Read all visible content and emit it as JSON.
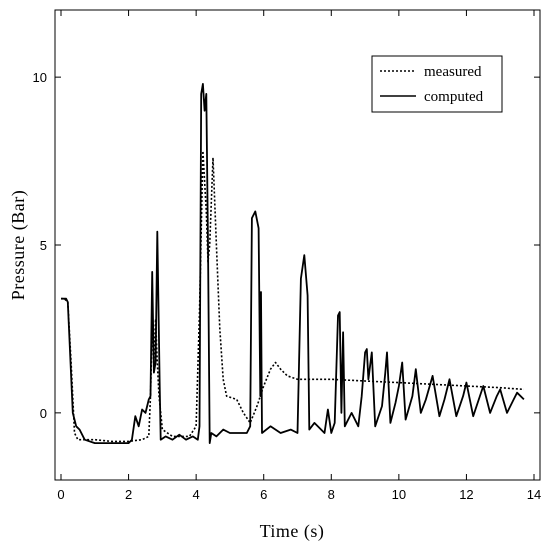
{
  "chart_data": {
    "type": "line",
    "title": "",
    "xlabel": "Time (s)",
    "ylabel": "Pressure (Bar)",
    "xlim": [
      0,
      14
    ],
    "ylim": [
      -2,
      12
    ],
    "xticks": [
      0,
      2,
      4,
      6,
      8,
      10,
      12,
      14
    ],
    "yticks": [
      0,
      5,
      10
    ],
    "grid": false,
    "legend_position": "top-right",
    "series": [
      {
        "name": "measured",
        "style": "dotted",
        "color": "#000000",
        "points": [
          [
            0.0,
            3.4
          ],
          [
            0.1,
            3.4
          ],
          [
            0.2,
            3.3
          ],
          [
            0.3,
            1.5
          ],
          [
            0.4,
            -0.6
          ],
          [
            0.5,
            -0.8
          ],
          [
            0.6,
            -0.8
          ],
          [
            1.0,
            -0.8
          ],
          [
            1.5,
            -0.85
          ],
          [
            2.0,
            -0.85
          ],
          [
            2.4,
            -0.8
          ],
          [
            2.6,
            -0.7
          ],
          [
            2.65,
            0.5
          ],
          [
            2.7,
            2.5
          ],
          [
            2.75,
            1.5
          ],
          [
            2.8,
            2.8
          ],
          [
            2.85,
            1.5
          ],
          [
            2.9,
            0.5
          ],
          [
            3.0,
            -0.5
          ],
          [
            3.3,
            -0.7
          ],
          [
            3.8,
            -0.7
          ],
          [
            4.0,
            -0.4
          ],
          [
            4.1,
            3.0
          ],
          [
            4.2,
            7.8
          ],
          [
            4.3,
            6.0
          ],
          [
            4.35,
            4.5
          ],
          [
            4.4,
            5.0
          ],
          [
            4.5,
            7.6
          ],
          [
            4.6,
            5.0
          ],
          [
            4.7,
            2.5
          ],
          [
            4.8,
            1.0
          ],
          [
            4.9,
            0.5
          ],
          [
            5.2,
            0.4
          ],
          [
            5.4,
            0.0
          ],
          [
            5.6,
            -0.3
          ],
          [
            5.8,
            0.2
          ],
          [
            6.0,
            0.8
          ],
          [
            6.2,
            1.3
          ],
          [
            6.35,
            1.5
          ],
          [
            6.5,
            1.3
          ],
          [
            6.7,
            1.1
          ],
          [
            7.0,
            1.0
          ],
          [
            8.0,
            1.0
          ],
          [
            9.0,
            0.95
          ],
          [
            10.0,
            0.9
          ],
          [
            11.0,
            0.85
          ],
          [
            12.0,
            0.8
          ],
          [
            13.0,
            0.75
          ],
          [
            13.7,
            0.7
          ]
        ]
      },
      {
        "name": "computed",
        "style": "solid",
        "color": "#000000",
        "points": [
          [
            0.0,
            3.4
          ],
          [
            0.15,
            3.4
          ],
          [
            0.2,
            3.3
          ],
          [
            0.35,
            0.0
          ],
          [
            0.45,
            -0.4
          ],
          [
            0.55,
            -0.5
          ],
          [
            0.7,
            -0.8
          ],
          [
            1.0,
            -0.9
          ],
          [
            1.5,
            -0.9
          ],
          [
            2.0,
            -0.9
          ],
          [
            2.1,
            -0.8
          ],
          [
            2.2,
            -0.1
          ],
          [
            2.3,
            -0.4
          ],
          [
            2.4,
            0.1
          ],
          [
            2.5,
            0.0
          ],
          [
            2.6,
            0.4
          ],
          [
            2.65,
            0.5
          ],
          [
            2.7,
            4.2
          ],
          [
            2.75,
            1.2
          ],
          [
            2.8,
            1.5
          ],
          [
            2.85,
            5.4
          ],
          [
            2.88,
            3.5
          ],
          [
            2.92,
            0.8
          ],
          [
            2.95,
            -0.8
          ],
          [
            3.1,
            -0.7
          ],
          [
            3.3,
            -0.8
          ],
          [
            3.5,
            -0.65
          ],
          [
            3.7,
            -0.8
          ],
          [
            3.9,
            -0.7
          ],
          [
            4.05,
            -0.8
          ],
          [
            4.1,
            -0.4
          ],
          [
            4.15,
            9.5
          ],
          [
            4.2,
            9.8
          ],
          [
            4.25,
            9.0
          ],
          [
            4.3,
            9.5
          ],
          [
            4.35,
            5.0
          ],
          [
            4.4,
            -0.9
          ],
          [
            4.45,
            -0.6
          ],
          [
            4.6,
            -0.7
          ],
          [
            4.8,
            -0.5
          ],
          [
            5.0,
            -0.6
          ],
          [
            5.2,
            -0.6
          ],
          [
            5.5,
            -0.6
          ],
          [
            5.6,
            -0.4
          ],
          [
            5.65,
            5.8
          ],
          [
            5.75,
            6.0
          ],
          [
            5.85,
            5.5
          ],
          [
            5.9,
            0.5
          ],
          [
            5.92,
            3.6
          ],
          [
            5.95,
            -0.6
          ],
          [
            6.2,
            -0.4
          ],
          [
            6.5,
            -0.6
          ],
          [
            6.8,
            -0.5
          ],
          [
            7.0,
            -0.6
          ],
          [
            7.1,
            4.0
          ],
          [
            7.2,
            4.7
          ],
          [
            7.3,
            3.5
          ],
          [
            7.35,
            -0.5
          ],
          [
            7.5,
            -0.3
          ],
          [
            7.8,
            -0.6
          ],
          [
            7.9,
            0.1
          ],
          [
            8.0,
            -0.6
          ],
          [
            8.1,
            -0.3
          ],
          [
            8.2,
            2.9
          ],
          [
            8.25,
            3.0
          ],
          [
            8.3,
            0.0
          ],
          [
            8.35,
            2.4
          ],
          [
            8.4,
            -0.4
          ],
          [
            8.6,
            0.0
          ],
          [
            8.8,
            -0.4
          ],
          [
            8.9,
            0.5
          ],
          [
            9.0,
            1.8
          ],
          [
            9.05,
            1.9
          ],
          [
            9.1,
            1.0
          ],
          [
            9.2,
            1.8
          ],
          [
            9.3,
            -0.4
          ],
          [
            9.5,
            0.2
          ],
          [
            9.6,
            1.2
          ],
          [
            9.65,
            1.8
          ],
          [
            9.75,
            -0.3
          ],
          [
            9.9,
            0.3
          ],
          [
            10.0,
            0.8
          ],
          [
            10.1,
            1.5
          ],
          [
            10.2,
            -0.2
          ],
          [
            10.4,
            0.5
          ],
          [
            10.5,
            1.3
          ],
          [
            10.65,
            0.0
          ],
          [
            10.8,
            0.4
          ],
          [
            11.0,
            1.1
          ],
          [
            11.2,
            -0.1
          ],
          [
            11.35,
            0.4
          ],
          [
            11.5,
            1.0
          ],
          [
            11.7,
            -0.1
          ],
          [
            11.9,
            0.5
          ],
          [
            12.0,
            0.9
          ],
          [
            12.2,
            -0.1
          ],
          [
            12.4,
            0.5
          ],
          [
            12.5,
            0.8
          ],
          [
            12.7,
            0.0
          ],
          [
            12.9,
            0.5
          ],
          [
            13.0,
            0.7
          ],
          [
            13.2,
            0.0
          ],
          [
            13.4,
            0.4
          ],
          [
            13.5,
            0.6
          ],
          [
            13.7,
            0.4
          ]
        ]
      }
    ]
  }
}
